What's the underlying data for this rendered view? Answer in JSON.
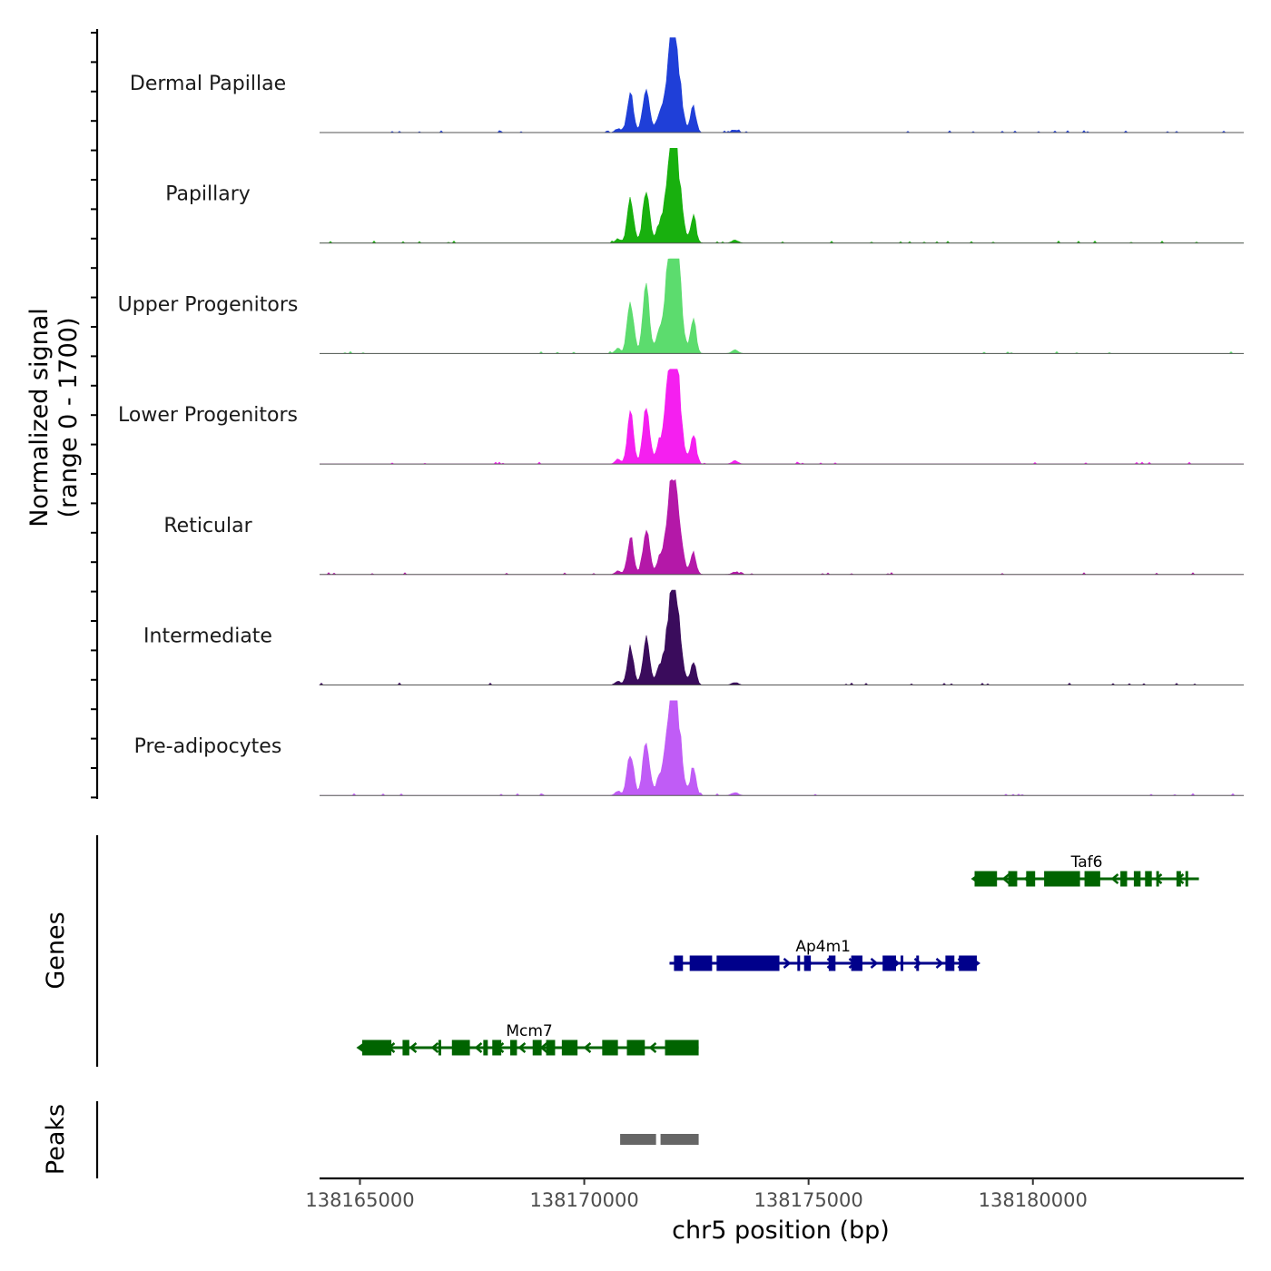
{
  "chart_data": {
    "type": "area",
    "title": "",
    "xlabel": "chr5 position (bp)",
    "ylabel_line1": "Normalized signal",
    "ylabel_line2": "(range 0 - 1700)",
    "y_range": [
      0,
      1700
    ],
    "xlim": [
      138164100,
      138184700
    ],
    "x_ticks": [
      {
        "value": 138165000,
        "label": "138165000"
      },
      {
        "value": 138170000,
        "label": "138170000"
      },
      {
        "value": 138175000,
        "label": "138175000"
      },
      {
        "value": 138180000,
        "label": "138180000"
      }
    ],
    "coverage_peaks": [
      {
        "center": 138171920,
        "rel": 1.0,
        "width": 110
      },
      {
        "center": 138172050,
        "rel": 0.95,
        "width": 110
      },
      {
        "center": 138171380,
        "rel": 0.72,
        "width": 75
      },
      {
        "center": 138171030,
        "rel": 0.6,
        "width": 70
      },
      {
        "center": 138172430,
        "rel": 0.38,
        "width": 60
      },
      {
        "center": 138171670,
        "rel": 0.22,
        "width": 70
      },
      {
        "center": 138170750,
        "rel": 0.06,
        "width": 60
      },
      {
        "center": 138173360,
        "rel": 0.04,
        "width": 70
      }
    ],
    "series": [
      {
        "name": "Dermal Papillae",
        "color": "#1f3fd8",
        "max": 1.0
      },
      {
        "name": "Papillary",
        "color": "#18b00e",
        "max": 1.07
      },
      {
        "name": "Upper Progenitors",
        "color": "#5cdc6e",
        "max": 1.37
      },
      {
        "name": "Lower Progenitors",
        "color": "#f51ff0",
        "max": 1.23
      },
      {
        "name": "Reticular",
        "color": "#b418a8",
        "max": 0.93
      },
      {
        "name": "Intermediate",
        "color": "#3a0c5c",
        "max": 0.96
      },
      {
        "name": "Pre-adipocytes",
        "color": "#c05cf6",
        "max": 1.14
      }
    ],
    "genes_label": "Genes",
    "genes": [
      {
        "name": "Taf6",
        "strand": "-",
        "color": "#006400",
        "start": 138178700,
        "end": 138183700,
        "row": 0,
        "exons": [
          [
            138178700,
            138179200
          ],
          [
            138179450,
            138179650
          ],
          [
            138179850,
            138180050
          ],
          [
            138180250,
            138181050
          ],
          [
            138181150,
            138181500
          ],
          [
            138181950,
            138182100
          ],
          [
            138182250,
            138182400
          ],
          [
            138182500,
            138182650
          ],
          [
            138182750,
            138182800
          ],
          [
            138183200,
            138183300
          ],
          [
            138183400,
            138183450
          ]
        ]
      },
      {
        "name": "Ap4m1",
        "strand": "+",
        "color": "#00008b",
        "start": 138171900,
        "end": 138178750,
        "row": 1,
        "exons": [
          [
            138172000,
            138172200
          ],
          [
            138172350,
            138172850
          ],
          [
            138172950,
            138174350
          ],
          [
            138174750,
            138174800
          ],
          [
            138174900,
            138175050
          ],
          [
            138175450,
            138175600
          ],
          [
            138175950,
            138176200
          ],
          [
            138176650,
            138176950
          ],
          [
            138177050,
            138177100
          ],
          [
            138177400,
            138177450
          ],
          [
            138178050,
            138178250
          ],
          [
            138178350,
            138178750
          ]
        ]
      },
      {
        "name": "Mcm7",
        "strand": "-",
        "color": "#006400",
        "start": 138165000,
        "end": 138172550,
        "row": 2,
        "exons": [
          [
            138165050,
            138165700
          ],
          [
            138165950,
            138166100
          ],
          [
            138166750,
            138166800
          ],
          [
            138167050,
            138167450
          ],
          [
            138167750,
            138167850
          ],
          [
            138167950,
            138168150
          ],
          [
            138168350,
            138168500
          ],
          [
            138168850,
            138169050
          ],
          [
            138169150,
            138169350
          ],
          [
            138169500,
            138169850
          ],
          [
            138170400,
            138170750
          ],
          [
            138170950,
            138171350
          ],
          [
            138171800,
            138172550
          ]
        ]
      }
    ],
    "peaks_label": "Peaks",
    "peaks": [
      [
        138170800,
        138171600
      ],
      [
        138171700,
        138172550
      ]
    ]
  }
}
